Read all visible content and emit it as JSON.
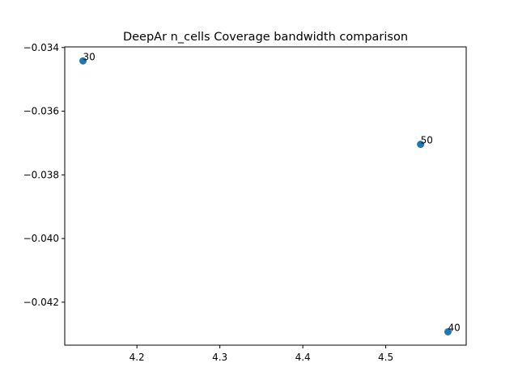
{
  "chart_data": {
    "type": "scatter",
    "title": "DeepAr n_cells Coverage bandwidth comparison",
    "xlabel": "",
    "ylabel": "",
    "xlim": [
      4.113,
      4.597
    ],
    "ylim": [
      -0.04335,
      -0.03398
    ],
    "xticks": [
      4.2,
      4.3,
      4.4,
      4.5
    ],
    "xtick_labels": [
      "4.2",
      "4.3",
      "4.4",
      "4.5"
    ],
    "yticks": [
      -0.042,
      -0.04,
      -0.038,
      -0.036,
      -0.034
    ],
    "ytick_labels": [
      "−0.042",
      "−0.040",
      "−0.038",
      "−0.036",
      "−0.034"
    ],
    "grid": false,
    "marker_color": "#1f77b4",
    "points": [
      {
        "x": 4.135,
        "y": -0.03442,
        "label": "30"
      },
      {
        "x": 4.542,
        "y": -0.03704,
        "label": "50"
      },
      {
        "x": 4.575,
        "y": -0.04293,
        "label": "40"
      }
    ]
  }
}
